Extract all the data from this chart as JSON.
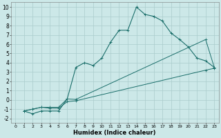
{
  "xlabel": "Humidex (Indice chaleur)",
  "bg_color": "#cce8e8",
  "grid_color": "#aacccc",
  "line_color": "#1a6e6a",
  "xlim": [
    -0.5,
    23.5
  ],
  "ylim": [
    -2.5,
    10.5
  ],
  "xticks": [
    0,
    1,
    2,
    3,
    4,
    5,
    6,
    7,
    8,
    9,
    10,
    11,
    12,
    13,
    14,
    15,
    16,
    17,
    18,
    19,
    20,
    21,
    22,
    23
  ],
  "yticks": [
    -2,
    -1,
    0,
    1,
    2,
    3,
    4,
    5,
    6,
    7,
    8,
    9,
    10
  ],
  "line1_x": [
    1,
    2,
    3,
    4,
    5,
    6,
    7,
    8,
    9,
    10,
    11,
    12,
    13,
    14,
    15,
    16,
    17,
    18,
    19,
    20,
    21,
    22,
    23
  ],
  "line1_y": [
    -1.2,
    -1.5,
    -1.2,
    -1.2,
    -1.2,
    0.1,
    3.5,
    4.0,
    3.7,
    4.5,
    6.2,
    7.5,
    7.5,
    10.0,
    9.2,
    9.0,
    8.5,
    7.2,
    6.5,
    5.7,
    4.5,
    4.2,
    3.5
  ],
  "line2_x": [
    1,
    2,
    3,
    4,
    5,
    6,
    7,
    22,
    23
  ],
  "line2_y": [
    -1.2,
    -1.0,
    -0.8,
    -0.8,
    -0.8,
    0.1,
    0.05,
    6.5,
    3.5
  ],
  "line3_x": [
    1,
    2,
    3,
    4,
    5,
    6,
    7,
    22,
    23
  ],
  "line3_y": [
    -1.2,
    -1.0,
    -0.8,
    -0.9,
    -0.9,
    -0.2,
    -0.1,
    3.2,
    3.4
  ]
}
